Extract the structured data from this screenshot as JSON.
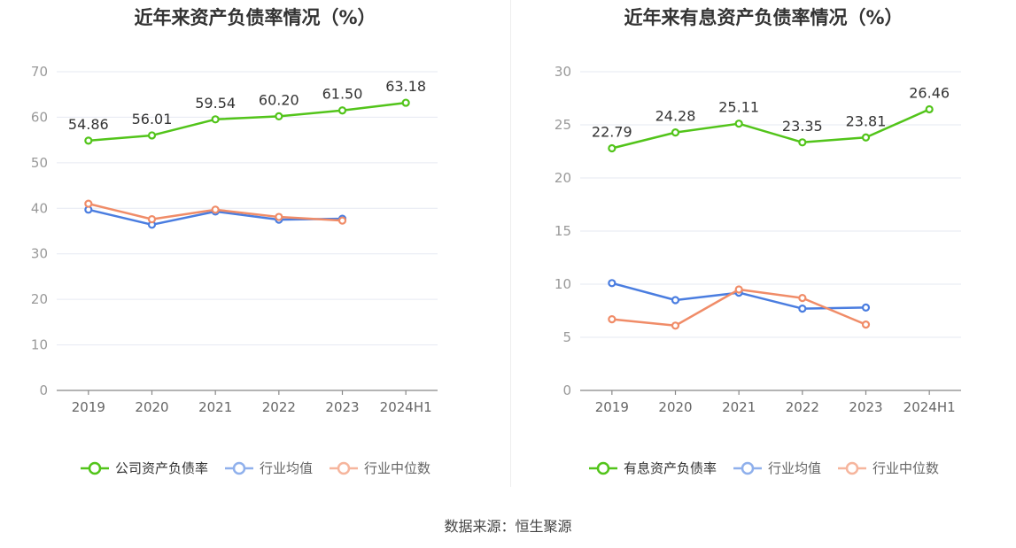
{
  "source_text": "数据来源：恒生聚源",
  "chart_data": [
    {
      "type": "line",
      "title": "近年来资产负债率情况（%）",
      "categories": [
        "2019",
        "2020",
        "2021",
        "2022",
        "2023",
        "2024H1"
      ],
      "ylim": [
        0,
        70
      ],
      "yticks": [
        "0",
        "10",
        "20",
        "30",
        "40",
        "50",
        "60",
        "70"
      ],
      "grid": true,
      "legend_position": "bottom-center",
      "series": [
        {
          "name": "公司资产负债率",
          "color": "#52c41a",
          "values": [
            54.86,
            56.01,
            59.54,
            60.2,
            61.5,
            63.18
          ],
          "labels": [
            "54.86",
            "56.01",
            "59.54",
            "60.20",
            "61.50",
            "63.18"
          ]
        },
        {
          "name": "行业均值",
          "color": "#4a7de0",
          "values": [
            39.7,
            36.4,
            39.3,
            37.5,
            37.7,
            null
          ]
        },
        {
          "name": "行业中位数",
          "color": "#f08c68",
          "values": [
            41.0,
            37.6,
            39.7,
            38.1,
            37.3,
            null
          ]
        }
      ]
    },
    {
      "type": "line",
      "title": "近年来有息资产负债率情况（%）",
      "categories": [
        "2019",
        "2020",
        "2021",
        "2022",
        "2023",
        "2024H1"
      ],
      "ylim": [
        0,
        30
      ],
      "yticks": [
        "0",
        "5",
        "10",
        "15",
        "20",
        "25",
        "30"
      ],
      "grid": true,
      "legend_position": "bottom-center",
      "series": [
        {
          "name": "有息资产负债率",
          "color": "#52c41a",
          "values": [
            22.79,
            24.28,
            25.11,
            23.35,
            23.81,
            26.46
          ],
          "labels": [
            "22.79",
            "24.28",
            "25.11",
            "23.35",
            "23.81",
            "26.46"
          ]
        },
        {
          "name": "行业均值",
          "color": "#4a7de0",
          "values": [
            10.1,
            8.5,
            9.2,
            7.7,
            7.8,
            null
          ]
        },
        {
          "name": "行业中位数",
          "color": "#f08c68",
          "values": [
            6.7,
            6.1,
            9.5,
            8.7,
            6.2,
            null
          ]
        }
      ]
    }
  ]
}
